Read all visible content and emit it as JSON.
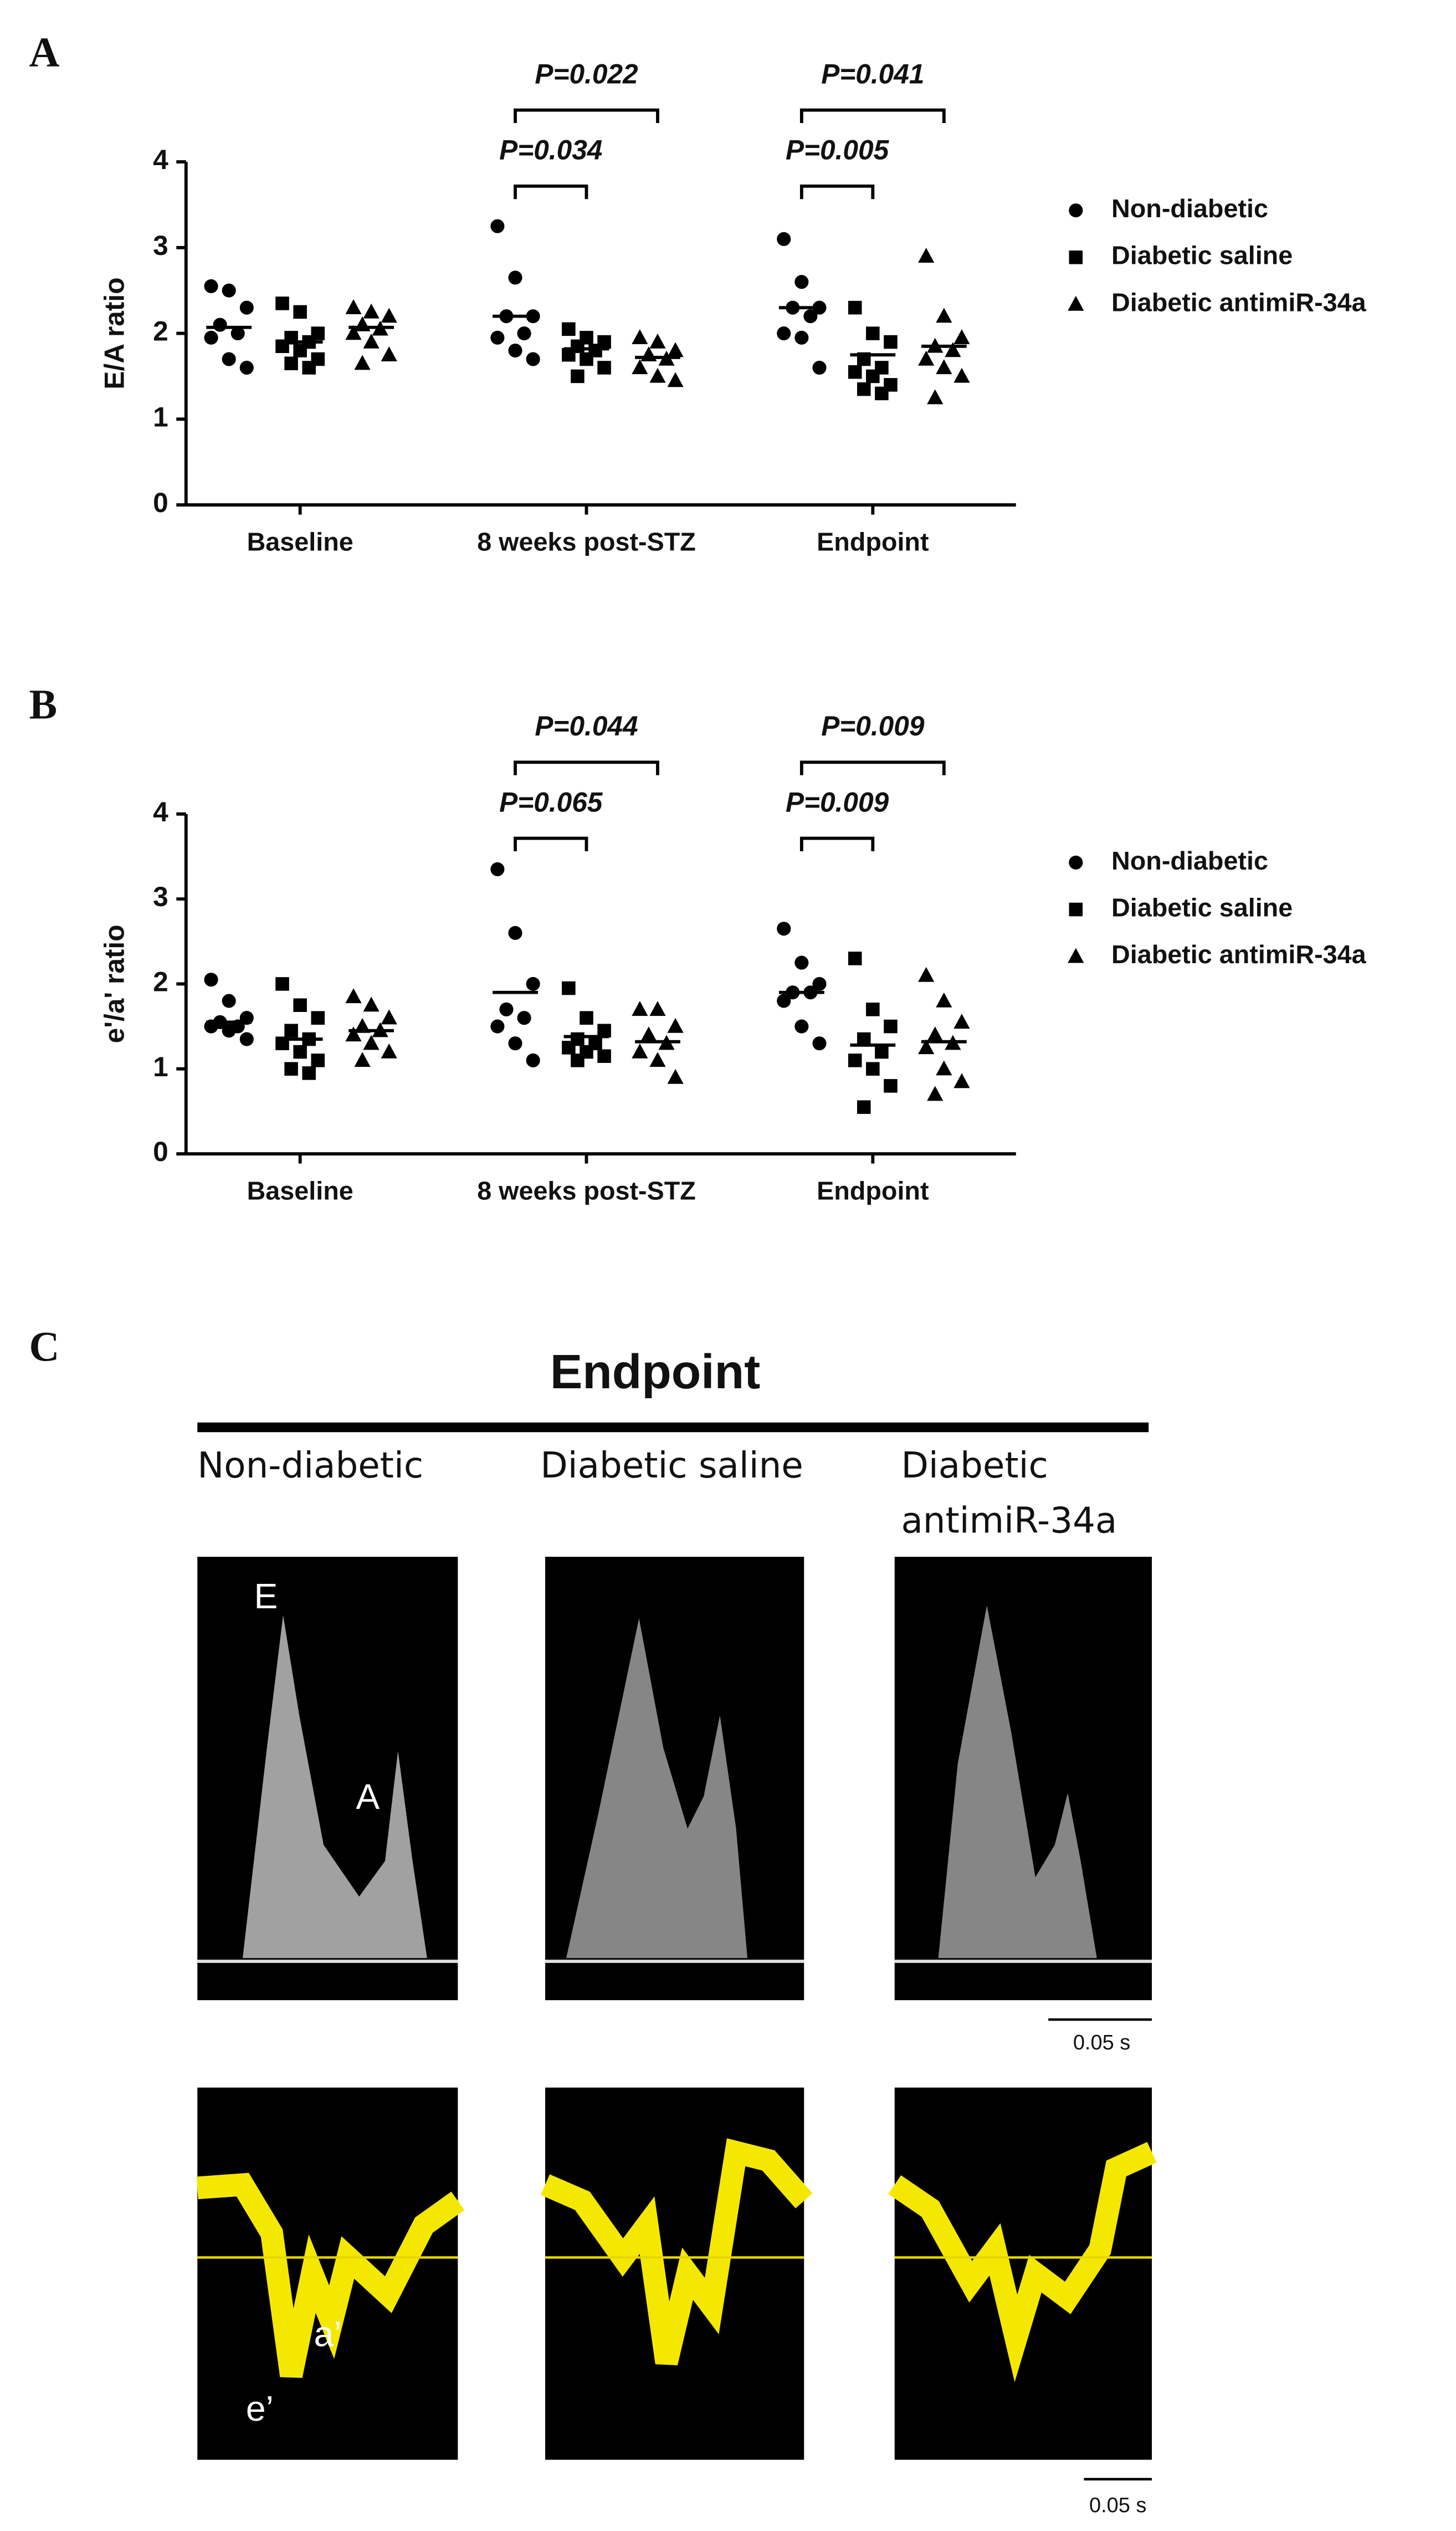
{
  "chart_data": [
    {
      "type": "dot",
      "panel_label": "A",
      "ylabel": "E/A ratio",
      "categories": [
        "Baseline",
        "8 weeks post-STZ",
        "Endpoint"
      ],
      "ylim": [
        0,
        4
      ],
      "yticks": [
        0,
        1,
        2,
        3,
        4
      ],
      "legend": "right",
      "series": [
        {
          "name": "Non-diabetic",
          "marker": "circle",
          "color": "#000000",
          "values": [
            [
              2.55,
              2.5,
              2.3,
              2.1,
              2.0,
              1.95,
              1.7,
              1.6
            ],
            [
              3.25,
              2.65,
              2.2,
              2.2,
              2.0,
              1.95,
              1.8,
              1.7
            ],
            [
              3.1,
              2.6,
              2.3,
              2.3,
              2.2,
              2.0,
              1.95,
              1.6
            ]
          ],
          "means": [
            2.07,
            2.2,
            2.3
          ]
        },
        {
          "name": "Diabetic saline",
          "marker": "square",
          "color": "#000000",
          "values": [
            [
              2.35,
              2.25,
              2.0,
              1.95,
              1.9,
              1.85,
              1.8,
              1.7,
              1.65,
              1.6
            ],
            [
              2.05,
              1.95,
              1.9,
              1.85,
              1.8,
              1.75,
              1.7,
              1.6,
              1.5
            ],
            [
              2.3,
              2.0,
              1.9,
              1.7,
              1.6,
              1.55,
              1.5,
              1.4,
              1.35,
              1.3
            ]
          ],
          "means": [
            1.9,
            1.82,
            1.75
          ]
        },
        {
          "name": "Diabetic antimiR-34a",
          "marker": "triangle",
          "color": "#000000",
          "values": [
            [
              2.3,
              2.25,
              2.2,
              2.1,
              2.05,
              2.0,
              1.9,
              1.75,
              1.65
            ],
            [
              1.95,
              1.9,
              1.8,
              1.75,
              1.7,
              1.6,
              1.5,
              1.45
            ],
            [
              2.9,
              2.2,
              1.95,
              1.85,
              1.8,
              1.7,
              1.6,
              1.5,
              1.25
            ]
          ],
          "means": [
            2.07,
            1.72,
            1.85
          ]
        }
      ],
      "annotations": [
        {
          "label": "P=0.022",
          "category": 1,
          "from": 0,
          "to": 2
        },
        {
          "label": "P=0.034",
          "category": 1,
          "from": 0,
          "to": 1
        },
        {
          "label": "P=0.041",
          "category": 2,
          "from": 0,
          "to": 2
        },
        {
          "label": "P=0.005",
          "category": 2,
          "from": 0,
          "to": 1
        }
      ]
    },
    {
      "type": "dot",
      "panel_label": "B",
      "ylabel": "e'/a' ratio",
      "categories": [
        "Baseline",
        "8 weeks post-STZ",
        "Endpoint"
      ],
      "ylim": [
        0,
        4
      ],
      "yticks": [
        0,
        1,
        2,
        3,
        4
      ],
      "legend": "right",
      "series": [
        {
          "name": "Non-diabetic",
          "marker": "circle",
          "color": "#000000",
          "values": [
            [
              2.05,
              1.8,
              1.6,
              1.55,
              1.5,
              1.5,
              1.45,
              1.35
            ],
            [
              3.35,
              2.6,
              2.0,
              1.7,
              1.6,
              1.5,
              1.3,
              1.1
            ],
            [
              2.65,
              2.25,
              2.0,
              1.9,
              1.9,
              1.8,
              1.5,
              1.3
            ]
          ],
          "means": [
            1.55,
            1.9,
            1.9
          ]
        },
        {
          "name": "Diabetic saline",
          "marker": "square",
          "color": "#000000",
          "values": [
            [
              2.0,
              1.75,
              1.6,
              1.45,
              1.35,
              1.3,
              1.2,
              1.1,
              1.0,
              0.95
            ],
            [
              1.95,
              1.6,
              1.45,
              1.35,
              1.3,
              1.25,
              1.2,
              1.15,
              1.1
            ],
            [
              2.3,
              1.7,
              1.5,
              1.35,
              1.2,
              1.1,
              1.0,
              0.8,
              0.55
            ]
          ],
          "means": [
            1.35,
            1.38,
            1.28
          ]
        },
        {
          "name": "Diabetic antimiR-34a",
          "marker": "triangle",
          "color": "#000000",
          "values": [
            [
              1.85,
              1.75,
              1.6,
              1.5,
              1.45,
              1.4,
              1.3,
              1.2,
              1.1
            ],
            [
              1.7,
              1.7,
              1.5,
              1.4,
              1.3,
              1.2,
              1.1,
              0.9
            ],
            [
              2.1,
              1.8,
              1.55,
              1.4,
              1.3,
              1.25,
              1.0,
              0.85,
              0.7
            ]
          ],
          "means": [
            1.45,
            1.32,
            1.32
          ]
        }
      ],
      "annotations": [
        {
          "label": "P=0.044",
          "category": 1,
          "from": 0,
          "to": 2
        },
        {
          "label": "P=0.065",
          "category": 1,
          "from": 0,
          "to": 1
        },
        {
          "label": "P=0.009",
          "category": 2,
          "from": 0,
          "to": 2
        },
        {
          "label": "P=0.009",
          "category": 2,
          "from": 0,
          "to": 1
        }
      ]
    }
  ],
  "panel_c": {
    "label": "C",
    "title": "Endpoint",
    "columns": [
      "Non-diabetic",
      "Diabetic saline",
      "Diabetic antimiR-34a"
    ],
    "top_labels": [
      "E",
      "A"
    ],
    "bottom_labels": [
      "e’",
      "a’"
    ],
    "scale_bar_top": "0.05 s",
    "scale_bar_bottom": "0.05 s"
  }
}
